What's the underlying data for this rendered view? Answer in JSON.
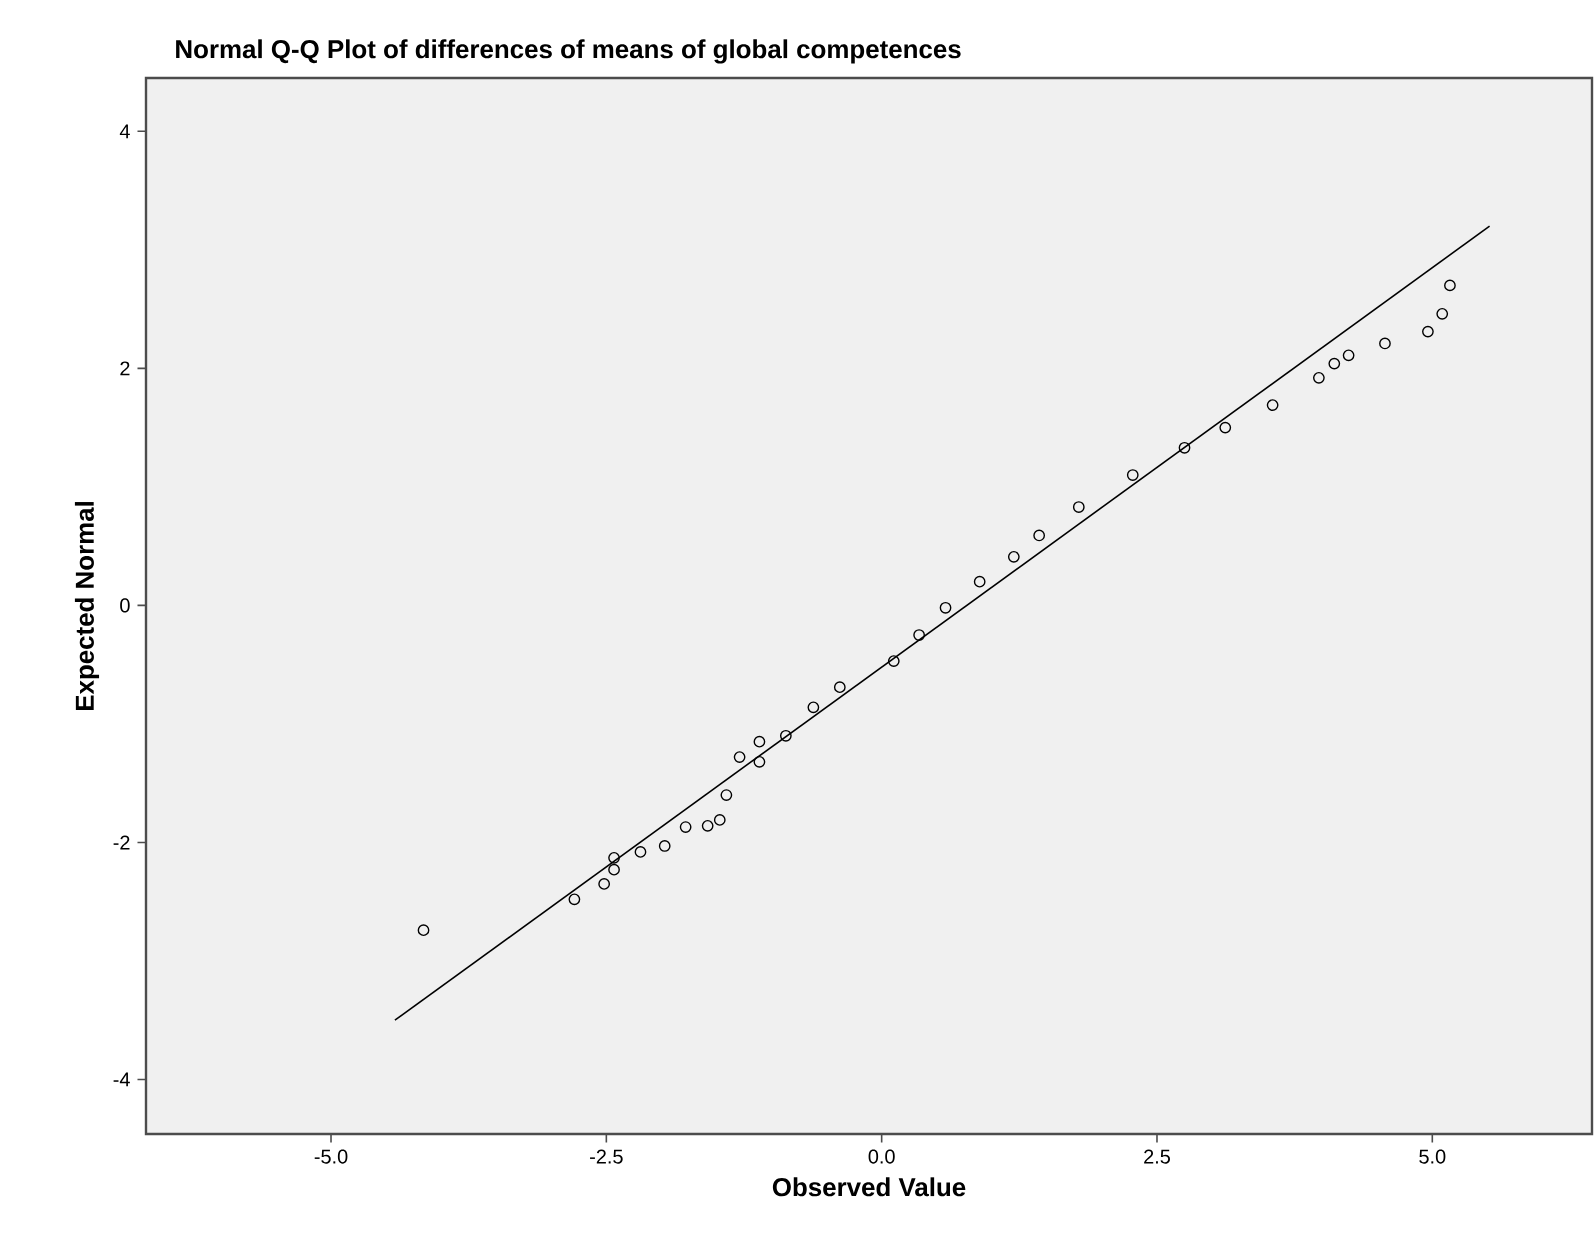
{
  "chart_data": {
    "type": "scatter",
    "title": "Normal Q-Q Plot of differences of means of global competences",
    "xlabel": "Observed Value",
    "ylabel": "Expected Normal",
    "xlim": [
      -6.68,
      6.45
    ],
    "ylim": [
      -4.46,
      4.45
    ],
    "xticks": [
      {
        "value": -5,
        "label": "-5.0"
      },
      {
        "value": -2.5,
        "label": "-2.5"
      },
      {
        "value": 0,
        "label": "0.0"
      },
      {
        "value": 2.5,
        "label": "2.5"
      },
      {
        "value": 5,
        "label": "5.0"
      }
    ],
    "yticks": [
      -4,
      -2,
      0,
      2,
      4
    ],
    "grid": false,
    "series": [
      {
        "marker": "circle",
        "color": "#000000",
        "x": [
          -4.16,
          -2.79,
          -2.52,
          -2.43,
          -2.43,
          -2.19,
          -1.97,
          -1.78,
          -1.58,
          -1.47,
          -1.41,
          -1.29,
          -1.11,
          -1.11,
          -0.87,
          -0.62,
          -0.38,
          0.11,
          0.34,
          0.58,
          0.89,
          1.2,
          1.43,
          1.79,
          2.28,
          2.75,
          3.12,
          3.55,
          3.97,
          4.11,
          4.24,
          4.57,
          4.96,
          5.09,
          5.16
        ],
        "values": [
          -2.74,
          -2.48,
          -2.35,
          -2.23,
          -2.13,
          -2.08,
          -2.03,
          -1.87,
          -1.86,
          -1.81,
          -1.6,
          -1.28,
          -1.15,
          -1.32,
          -1.1,
          -0.86,
          -0.69,
          -0.47,
          -0.25,
          -0.02,
          0.2,
          0.41,
          0.59,
          0.83,
          1.1,
          1.33,
          1.5,
          1.69,
          1.92,
          2.04,
          2.11,
          2.21,
          2.31,
          2.46,
          2.7
        ]
      },
      {
        "type": "line",
        "marker": "none",
        "color": "#000000",
        "x": [
          -4.42,
          5.52
        ],
        "values": [
          -3.5,
          3.2
        ]
      }
    ]
  }
}
